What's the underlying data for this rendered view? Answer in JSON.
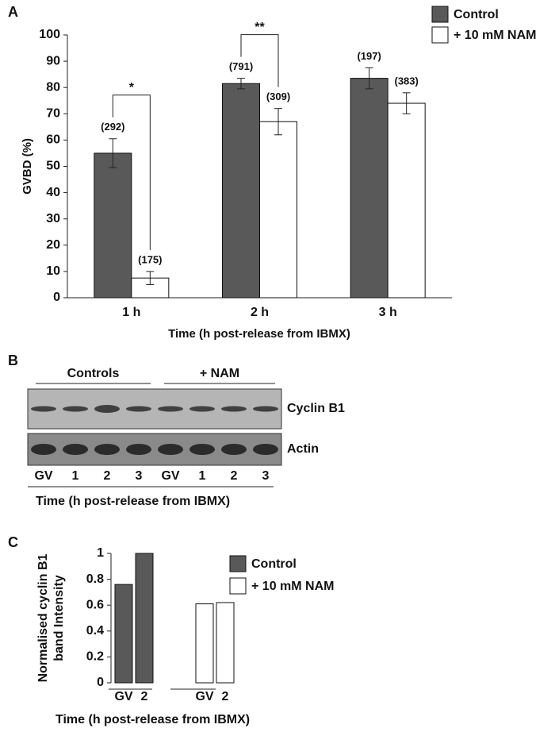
{
  "chart_data": [
    {
      "type": "bar",
      "panel_label": "A",
      "categories": [
        "1 h",
        "2 h",
        "3 h"
      ],
      "series": [
        {
          "name": "Control",
          "color": "#595959",
          "values": [
            55,
            81.5,
            83.5
          ],
          "errors": [
            5.5,
            2,
            4
          ],
          "count_labels": [
            "(292)",
            "(791)",
            "(197)"
          ]
        },
        {
          "name": "+ 10 mM NAM",
          "color": "#ffffff",
          "values": [
            7.5,
            67,
            74
          ],
          "errors": [
            2.5,
            5,
            4
          ],
          "count_labels": [
            "(175)",
            "(309)",
            "(383)"
          ]
        }
      ],
      "significance": [
        {
          "category": 0,
          "label": "*"
        },
        {
          "category": 1,
          "label": "**"
        }
      ],
      "ylim": [
        0,
        100
      ],
      "yticks": [
        0,
        10,
        20,
        30,
        40,
        50,
        60,
        70,
        80,
        90,
        100
      ],
      "ylabel": "GVBD (%)",
      "xlabel": "Time (h post-release from IBMX)",
      "legend": "top-right"
    },
    {
      "type": "bar",
      "panel_label": "C",
      "categories": [
        "GV",
        "2",
        "GV",
        "2"
      ],
      "series": [
        {
          "name": "Control",
          "color": "#595959",
          "values": [
            0.76,
            1,
            null,
            null
          ]
        },
        {
          "name": "+ 10 mM NAM",
          "color": "#ffffff",
          "values": [
            null,
            null,
            0.61,
            0.62
          ]
        }
      ],
      "ylim": [
        0,
        1
      ],
      "yticks": [
        0,
        0.2,
        0.4,
        0.6,
        0.8,
        1
      ],
      "ylabel": [
        "Normalised cyclin B1",
        "band Intensity"
      ],
      "xlabel": "Time (h post-release from IBMX)",
      "legend": "right"
    }
  ],
  "blot": {
    "panel_label": "B",
    "groups": [
      "Controls",
      "+ NAM"
    ],
    "rows": [
      "Cyclin B1",
      "Actin"
    ],
    "lanes": [
      "GV",
      "1",
      "2",
      "3",
      "GV",
      "1",
      "2",
      "3"
    ],
    "xlabel": "Time (h post-release from IBMX)"
  }
}
